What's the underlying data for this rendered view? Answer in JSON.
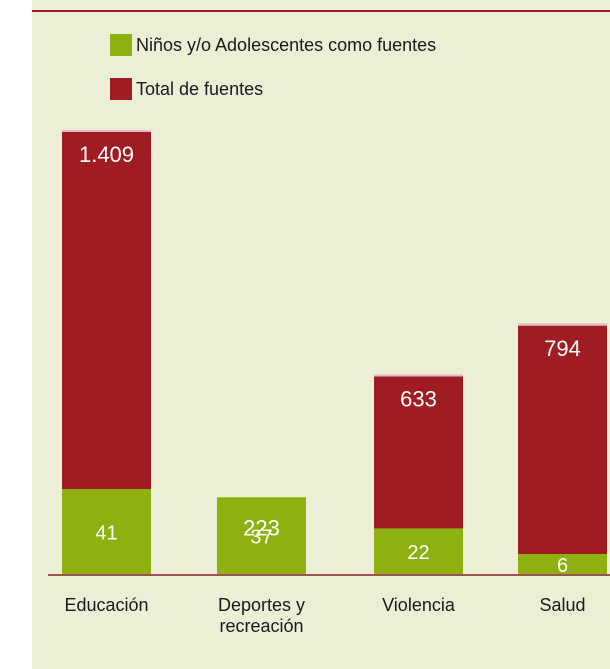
{
  "colors": {
    "panel": "#eceed6",
    "total": "#a01c23",
    "kids": "#8db10e",
    "rule": "#9f1b22",
    "axis": "#a05050"
  },
  "legend": {
    "kids": "Niños y/o Adolescentes como fuentes",
    "total": "Total de fuentes"
  },
  "chart_data": {
    "type": "bar",
    "categories": [
      "Educación",
      "Deportes y recreación",
      "Violencia",
      "Salud"
    ],
    "category_lines": [
      [
        "Educación"
      ],
      [
        "Deportes y",
        "recreación"
      ],
      [
        "Violencia"
      ],
      [
        "Salud"
      ]
    ],
    "series": [
      {
        "name": "Total de fuentes",
        "values": [
          1409,
          223,
          633,
          794
        ],
        "labels": [
          "1.409",
          "223",
          "633",
          "794"
        ]
      },
      {
        "name": "Niños y/o Adolescentes como fuentes",
        "values": [
          41,
          37,
          22,
          6
        ],
        "labels": [
          "41",
          "37",
          "22",
          "6"
        ]
      }
    ]
  }
}
